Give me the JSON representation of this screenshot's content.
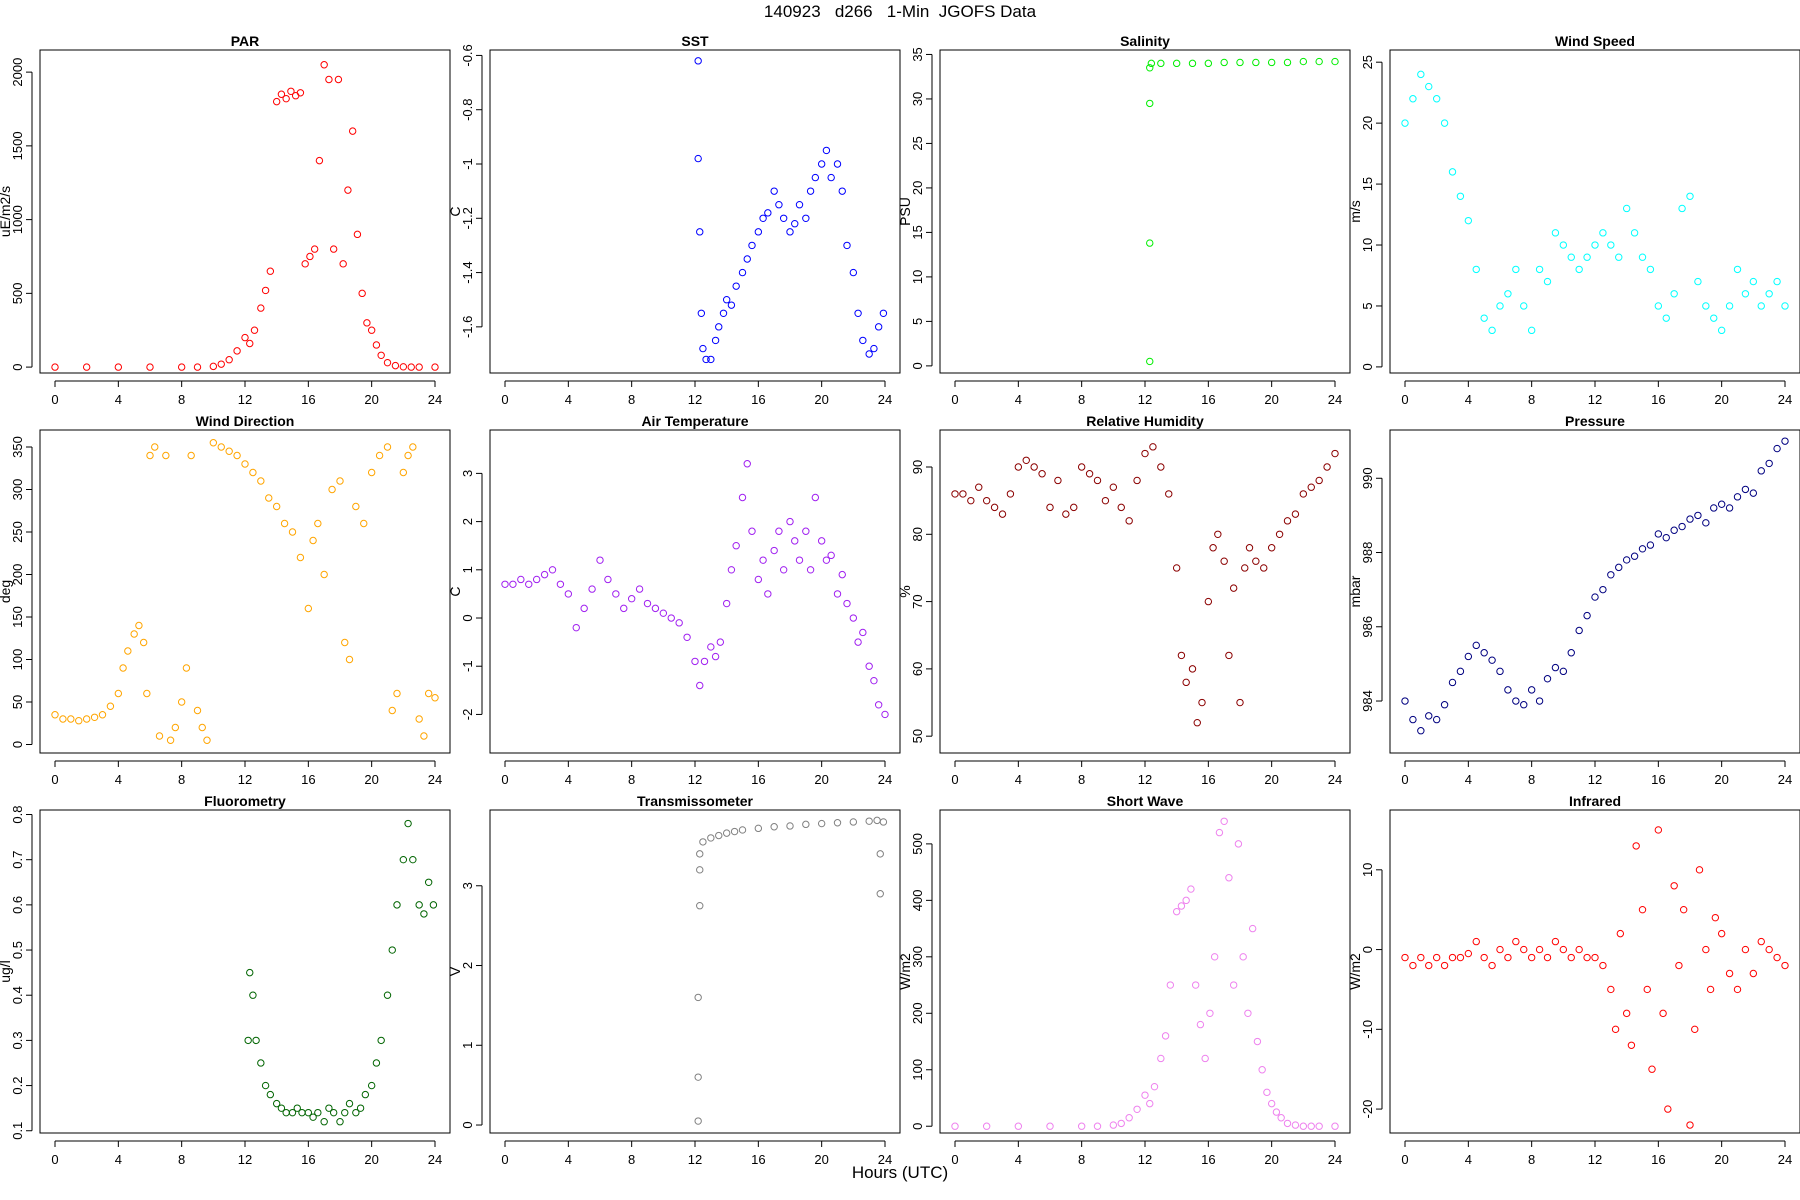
{
  "figure": {
    "title": "140923   d266   1-Min  JGOFS Data",
    "xlabel": "Hours (UTC)"
  },
  "chart_data": [
    {
      "type": "scatter",
      "title": "PAR",
      "ylabel": "uE/m2/s",
      "color": "#ff0000",
      "xlim": [
        0,
        24
      ],
      "xticks": [
        0,
        4,
        8,
        12,
        16,
        20,
        24
      ],
      "ylim": [
        -40,
        2150
      ],
      "yticks": [
        0,
        500,
        1000,
        1500,
        2000
      ],
      "x": [
        0,
        2,
        4,
        6,
        8,
        9,
        10,
        10.5,
        11,
        11.5,
        12,
        12.3,
        12.6,
        13,
        13.3,
        13.6,
        14,
        14.3,
        14.6,
        14.9,
        15.2,
        15.5,
        15.8,
        16.1,
        16.4,
        16.7,
        17,
        17.3,
        17.6,
        17.9,
        18.2,
        18.5,
        18.8,
        19.1,
        19.4,
        19.7,
        20,
        20.3,
        20.6,
        21,
        21.5,
        22,
        22.5,
        23,
        24
      ],
      "y": [
        0,
        0,
        0,
        0,
        0,
        0,
        5,
        20,
        50,
        110,
        200,
        160,
        250,
        400,
        520,
        650,
        1800,
        1850,
        1820,
        1870,
        1840,
        1860,
        700,
        750,
        800,
        1400,
        2050,
        1950,
        800,
        1950,
        700,
        1200,
        1600,
        900,
        500,
        300,
        250,
        150,
        80,
        30,
        10,
        2,
        0,
        0,
        0
      ]
    },
    {
      "type": "scatter",
      "title": "SST",
      "ylabel": "C",
      "color": "#0000ff",
      "xlim": [
        0,
        24
      ],
      "xticks": [
        0,
        4,
        8,
        12,
        16,
        20,
        24
      ],
      "ylim": [
        -1.77,
        -0.58
      ],
      "yticks": [
        -1.6,
        -1.4,
        -1.2,
        -1.0,
        -0.8,
        -0.6
      ],
      "x": [
        12.2,
        12.2,
        12.3,
        12.4,
        12.5,
        12.7,
        13,
        13.3,
        13.5,
        13.8,
        14,
        14.3,
        14.6,
        15,
        15.3,
        15.6,
        16,
        16.3,
        16.6,
        17,
        17.3,
        17.6,
        18,
        18.3,
        18.6,
        19,
        19.3,
        19.6,
        20,
        20.3,
        20.6,
        21,
        21.3,
        21.6,
        22,
        22.3,
        22.6,
        23,
        23.3,
        23.6,
        23.9
      ],
      "y": [
        -0.62,
        -0.98,
        -1.25,
        -1.55,
        -1.68,
        -1.72,
        -1.72,
        -1.65,
        -1.6,
        -1.55,
        -1.5,
        -1.52,
        -1.45,
        -1.4,
        -1.35,
        -1.3,
        -1.25,
        -1.2,
        -1.18,
        -1.1,
        -1.15,
        -1.2,
        -1.25,
        -1.22,
        -1.15,
        -1.2,
        -1.1,
        -1.05,
        -1.0,
        -0.95,
        -1.05,
        -1.0,
        -1.1,
        -1.3,
        -1.4,
        -1.55,
        -1.65,
        -1.7,
        -1.68,
        -1.6,
        -1.55
      ]
    },
    {
      "type": "scatter",
      "title": "Salinity",
      "ylabel": "PSU",
      "color": "#00ee00",
      "xlim": [
        0,
        24
      ],
      "xticks": [
        0,
        4,
        8,
        12,
        16,
        20,
        24
      ],
      "ylim": [
        -0.8,
        35.5
      ],
      "yticks": [
        0,
        5,
        10,
        15,
        20,
        25,
        30,
        35
      ],
      "x": [
        12.3,
        12.3,
        12.3,
        12.3,
        12.4,
        13,
        14,
        15,
        16,
        17,
        18,
        19,
        20,
        21,
        22,
        23,
        24
      ],
      "y": [
        0.5,
        13.8,
        29.5,
        33.5,
        34.0,
        34.0,
        34.0,
        34.0,
        34.0,
        34.1,
        34.1,
        34.1,
        34.1,
        34.1,
        34.2,
        34.2,
        34.2
      ]
    },
    {
      "type": "scatter",
      "title": "Wind Speed",
      "ylabel": "m/s",
      "color": "#00ffff",
      "xlim": [
        0,
        24
      ],
      "xticks": [
        0,
        4,
        8,
        12,
        16,
        20,
        24
      ],
      "ylim": [
        -0.5,
        26
      ],
      "yticks": [
        0,
        5,
        10,
        15,
        20,
        25
      ],
      "x": [
        0,
        0.5,
        1,
        1.5,
        2,
        2.5,
        3,
        3.5,
        4,
        4.5,
        5,
        5.5,
        6,
        6.5,
        7,
        7.5,
        8,
        8.5,
        9,
        9.5,
        10,
        10.5,
        11,
        11.5,
        12,
        12.5,
        13,
        13.5,
        14,
        14.5,
        15,
        15.5,
        16,
        16.5,
        17,
        17.5,
        18,
        18.5,
        19,
        19.5,
        20,
        20.5,
        21,
        21.5,
        22,
        22.5,
        23,
        23.5,
        24
      ],
      "y": [
        20,
        22,
        24,
        23,
        22,
        20,
        16,
        14,
        12,
        8,
        4,
        3,
        5,
        6,
        8,
        5,
        3,
        8,
        7,
        11,
        10,
        9,
        8,
        9,
        10,
        11,
        10,
        9,
        13,
        11,
        9,
        8,
        5,
        4,
        6,
        13,
        14,
        7,
        5,
        4,
        3,
        5,
        8,
        6,
        7,
        5,
        6,
        7,
        5
      ]
    },
    {
      "type": "scatter",
      "title": "Wind Direction",
      "ylabel": "deg",
      "color": "#ffa500",
      "xlim": [
        0,
        24
      ],
      "xticks": [
        0,
        4,
        8,
        12,
        16,
        20,
        24
      ],
      "ylim": [
        -10,
        370
      ],
      "yticks": [
        0,
        50,
        100,
        150,
        200,
        250,
        300,
        350
      ],
      "x": [
        0,
        0.5,
        1,
        1.5,
        2,
        2.5,
        3,
        3.5,
        4,
        4.3,
        4.6,
        5,
        5.3,
        5.6,
        5.8,
        6,
        6.3,
        6.6,
        7,
        7.3,
        7.6,
        8,
        8.3,
        8.6,
        9,
        9.3,
        9.6,
        10,
        10.5,
        11,
        11.5,
        12,
        12.5,
        13,
        13.5,
        14,
        14.5,
        15,
        15.5,
        16,
        16.3,
        16.6,
        17,
        17.5,
        18,
        18.3,
        18.6,
        19,
        19.5,
        20,
        20.5,
        21,
        21.3,
        21.6,
        22,
        22.3,
        22.6,
        23,
        23.3,
        23.6,
        24
      ],
      "y": [
        35,
        30,
        30,
        28,
        30,
        32,
        35,
        45,
        60,
        90,
        110,
        130,
        140,
        120,
        60,
        340,
        350,
        10,
        340,
        5,
        20,
        50,
        90,
        340,
        40,
        20,
        5,
        355,
        350,
        345,
        340,
        330,
        320,
        310,
        290,
        280,
        260,
        250,
        220,
        160,
        240,
        260,
        200,
        300,
        310,
        120,
        100,
        280,
        260,
        320,
        340,
        350,
        40,
        60,
        320,
        340,
        350,
        30,
        10,
        60,
        55
      ]
    },
    {
      "type": "scatter",
      "title": "Air Temperature",
      "ylabel": "C",
      "color": "#a020f0",
      "xlim": [
        0,
        24
      ],
      "xticks": [
        0,
        4,
        8,
        12,
        16,
        20,
        24
      ],
      "ylim": [
        -2.8,
        3.9
      ],
      "yticks": [
        -2,
        -1,
        0,
        1,
        2,
        3
      ],
      "x": [
        0,
        0.5,
        1,
        1.5,
        2,
        2.5,
        3,
        3.5,
        4,
        4.5,
        5,
        5.5,
        6,
        6.5,
        7,
        7.5,
        8,
        8.5,
        9,
        9.5,
        10,
        10.5,
        11,
        11.5,
        12,
        12.3,
        12.6,
        13,
        13.3,
        13.6,
        14,
        14.3,
        14.6,
        15,
        15.3,
        15.6,
        16,
        16.3,
        16.6,
        17,
        17.3,
        17.6,
        18,
        18.3,
        18.6,
        19,
        19.3,
        19.6,
        20,
        20.3,
        20.6,
        21,
        21.3,
        21.6,
        22,
        22.3,
        22.6,
        23,
        23.3,
        23.6,
        24
      ],
      "y": [
        0.7,
        0.7,
        0.8,
        0.7,
        0.8,
        0.9,
        1.0,
        0.7,
        0.5,
        -0.2,
        0.2,
        0.6,
        1.2,
        0.8,
        0.5,
        0.2,
        0.4,
        0.6,
        0.3,
        0.2,
        0.1,
        0.0,
        -0.1,
        -0.4,
        -0.9,
        -1.4,
        -0.9,
        -0.6,
        -0.8,
        -0.5,
        0.3,
        1.0,
        1.5,
        2.5,
        3.2,
        1.8,
        0.8,
        1.2,
        0.5,
        1.4,
        1.8,
        1.0,
        2.0,
        1.6,
        1.2,
        1.8,
        1.0,
        2.5,
        1.6,
        1.2,
        1.3,
        0.5,
        0.9,
        0.3,
        0.0,
        -0.5,
        -0.3,
        -1.0,
        -1.3,
        -1.8,
        -2.0
      ]
    },
    {
      "type": "scatter",
      "title": "Relative Humidity",
      "ylabel": "%",
      "color": "#8b0000",
      "xlim": [
        0,
        24
      ],
      "xticks": [
        0,
        4,
        8,
        12,
        16,
        20,
        24
      ],
      "ylim": [
        47.5,
        95.5
      ],
      "yticks": [
        50,
        60,
        70,
        80,
        90
      ],
      "x": [
        0,
        0.5,
        1,
        1.5,
        2,
        2.5,
        3,
        3.5,
        4,
        4.5,
        5,
        5.5,
        6,
        6.5,
        7,
        7.5,
        8,
        8.5,
        9,
        9.5,
        10,
        10.5,
        11,
        11.5,
        12,
        12.5,
        13,
        13.5,
        14,
        14.3,
        14.6,
        15,
        15.3,
        15.6,
        16,
        16.3,
        16.6,
        17,
        17.3,
        17.6,
        18,
        18.3,
        18.6,
        19,
        19.5,
        20,
        20.5,
        21,
        21.5,
        22,
        22.5,
        23,
        23.5,
        24
      ],
      "y": [
        86,
        86,
        85,
        87,
        85,
        84,
        83,
        86,
        90,
        91,
        90,
        89,
        84,
        88,
        83,
        84,
        90,
        89,
        88,
        85,
        87,
        84,
        82,
        88,
        92,
        93,
        90,
        86,
        75,
        62,
        58,
        60,
        52,
        55,
        70,
        78,
        80,
        76,
        62,
        72,
        55,
        75,
        78,
        76,
        75,
        78,
        80,
        82,
        83,
        86,
        87,
        88,
        90,
        92
      ]
    },
    {
      "type": "scatter",
      "title": "Pressure",
      "ylabel": "mbar",
      "color": "#000080",
      "xlim": [
        0,
        24
      ],
      "xticks": [
        0,
        4,
        8,
        12,
        16,
        20,
        24
      ],
      "ylim": [
        982.6,
        991.3
      ],
      "yticks": [
        984,
        986,
        988,
        990
      ],
      "x": [
        0,
        0.5,
        1,
        1.5,
        2,
        2.5,
        3,
        3.5,
        4,
        4.5,
        5,
        5.5,
        6,
        6.5,
        7,
        7.5,
        8,
        8.5,
        9,
        9.5,
        10,
        10.5,
        11,
        11.5,
        12,
        12.5,
        13,
        13.5,
        14,
        14.5,
        15,
        15.5,
        16,
        16.5,
        17,
        17.5,
        18,
        18.5,
        19,
        19.5,
        20,
        20.5,
        21,
        21.5,
        22,
        22.5,
        23,
        23.5,
        24
      ],
      "y": [
        984.0,
        983.5,
        983.2,
        983.6,
        983.5,
        983.9,
        984.5,
        984.8,
        985.2,
        985.5,
        985.3,
        985.1,
        984.8,
        984.3,
        984.0,
        983.9,
        984.3,
        984.0,
        984.6,
        984.9,
        984.8,
        985.3,
        985.9,
        986.3,
        986.8,
        987.0,
        987.4,
        987.6,
        987.8,
        987.9,
        988.1,
        988.2,
        988.5,
        988.4,
        988.6,
        988.7,
        988.9,
        989.0,
        988.8,
        989.2,
        989.3,
        989.2,
        989.5,
        989.7,
        989.6,
        990.2,
        990.4,
        990.8,
        991.0
      ]
    },
    {
      "type": "scatter",
      "title": "Fluorometry",
      "ylabel": "ug/l",
      "color": "#006400",
      "xlim": [
        0,
        24
      ],
      "xticks": [
        0,
        4,
        8,
        12,
        16,
        20,
        24
      ],
      "ylim": [
        0.095,
        0.81
      ],
      "yticks": [
        0.1,
        0.2,
        0.3,
        0.4,
        0.5,
        0.6,
        0.7,
        0.8
      ],
      "x": [
        12.2,
        12.3,
        12.5,
        12.7,
        13,
        13.3,
        13.6,
        14,
        14.3,
        14.6,
        15,
        15.3,
        15.6,
        16,
        16.3,
        16.6,
        17,
        17.3,
        17.6,
        18,
        18.3,
        18.6,
        19,
        19.3,
        19.6,
        20,
        20.3,
        20.6,
        21,
        21.3,
        21.6,
        22,
        22.3,
        22.6,
        23,
        23.3,
        23.6,
        23.9
      ],
      "y": [
        0.3,
        0.45,
        0.4,
        0.3,
        0.25,
        0.2,
        0.18,
        0.16,
        0.15,
        0.14,
        0.14,
        0.15,
        0.14,
        0.14,
        0.13,
        0.14,
        0.12,
        0.15,
        0.14,
        0.12,
        0.14,
        0.16,
        0.14,
        0.15,
        0.18,
        0.2,
        0.25,
        0.3,
        0.4,
        0.5,
        0.6,
        0.7,
        0.78,
        0.7,
        0.6,
        0.58,
        0.65,
        0.6
      ]
    },
    {
      "type": "scatter",
      "title": "Transmissometer",
      "ylabel": "V",
      "color": "#808080",
      "xlim": [
        0,
        24
      ],
      "xticks": [
        0,
        4,
        8,
        12,
        16,
        20,
        24
      ],
      "ylim": [
        -0.1,
        3.95
      ],
      "yticks": [
        0,
        1,
        2,
        3
      ],
      "x": [
        12.2,
        12.2,
        12.2,
        12.3,
        12.3,
        12.3,
        12.5,
        13,
        13.5,
        14,
        14.5,
        15,
        16,
        17,
        18,
        19,
        20,
        21,
        22,
        23,
        23.5,
        23.7,
        23.7,
        23.9
      ],
      "y": [
        0.05,
        0.6,
        1.6,
        2.75,
        3.2,
        3.4,
        3.55,
        3.6,
        3.63,
        3.66,
        3.68,
        3.7,
        3.72,
        3.74,
        3.75,
        3.77,
        3.78,
        3.79,
        3.8,
        3.81,
        3.82,
        3.4,
        2.9,
        3.8
      ]
    },
    {
      "type": "scatter",
      "title": "Short Wave",
      "ylabel": "W/m2",
      "color": "#ee82ee",
      "xlim": [
        0,
        24
      ],
      "xticks": [
        0,
        4,
        8,
        12,
        16,
        20,
        24
      ],
      "ylim": [
        -12,
        560
      ],
      "yticks": [
        0,
        100,
        200,
        300,
        400,
        500
      ],
      "x": [
        0,
        2,
        4,
        6,
        8,
        9,
        10,
        10.5,
        11,
        11.5,
        12,
        12.3,
        12.6,
        13,
        13.3,
        13.6,
        14,
        14.3,
        14.6,
        14.9,
        15.2,
        15.5,
        15.8,
        16.1,
        16.4,
        16.7,
        17,
        17.3,
        17.6,
        17.9,
        18.2,
        18.5,
        18.8,
        19.1,
        19.4,
        19.7,
        20,
        20.3,
        20.6,
        21,
        21.5,
        22,
        22.5,
        23,
        24
      ],
      "y": [
        0,
        0,
        0,
        0,
        0,
        0,
        2,
        5,
        15,
        30,
        55,
        40,
        70,
        120,
        160,
        250,
        380,
        390,
        400,
        420,
        250,
        180,
        120,
        200,
        300,
        520,
        540,
        440,
        250,
        500,
        300,
        200,
        350,
        150,
        100,
        60,
        40,
        25,
        15,
        5,
        2,
        0,
        0,
        0,
        0
      ]
    },
    {
      "type": "scatter",
      "title": "Infrared",
      "ylabel": "W/m2",
      "color": "#ff0000",
      "xlim": [
        0,
        24
      ],
      "xticks": [
        0,
        4,
        8,
        12,
        16,
        20,
        24
      ],
      "ylim": [
        -23,
        17.5
      ],
      "yticks": [
        -20,
        -10,
        0,
        10
      ],
      "x": [
        0,
        0.5,
        1,
        1.5,
        2,
        2.5,
        3,
        3.5,
        4,
        4.5,
        5,
        5.5,
        6,
        6.5,
        7,
        7.5,
        8,
        8.5,
        9,
        9.5,
        10,
        10.5,
        11,
        11.5,
        12,
        12.5,
        13,
        13.3,
        13.6,
        14,
        14.3,
        14.6,
        15,
        15.3,
        15.6,
        16,
        16.3,
        16.6,
        17,
        17.3,
        17.6,
        18,
        18.3,
        18.6,
        19,
        19.3,
        19.6,
        20,
        20.5,
        21,
        21.5,
        22,
        22.5,
        23,
        23.5,
        24
      ],
      "y": [
        -1,
        -2,
        -1,
        -2,
        -1,
        -2,
        -1,
        -1,
        -0.5,
        1,
        -1,
        -2,
        0,
        -1,
        1,
        0,
        -1,
        0,
        -1,
        1,
        0,
        -1,
        0,
        -1,
        -1,
        -2,
        -5,
        -10,
        2,
        -8,
        -12,
        13,
        5,
        -5,
        -15,
        15,
        -8,
        -20,
        8,
        -2,
        5,
        -22,
        -10,
        10,
        0,
        -5,
        4,
        2,
        -3,
        -5,
        0,
        -3,
        1,
        0,
        -1,
        -2
      ]
    }
  ]
}
